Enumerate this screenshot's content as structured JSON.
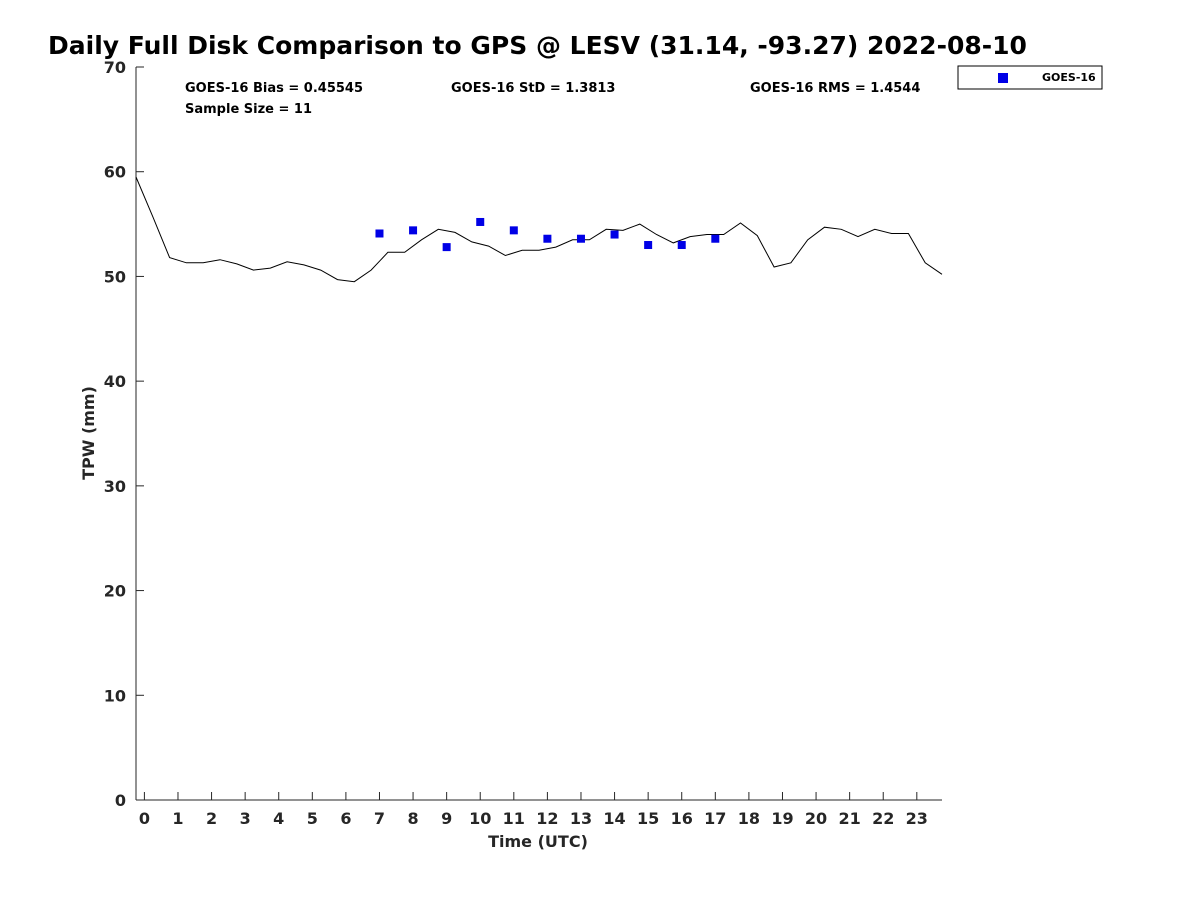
{
  "chart_data": {
    "type": "line",
    "title": "Daily Full Disk Comparison to GPS @ LESV (31.14, -93.27) 2022-08-10",
    "xlabel": "Time (UTC)",
    "ylabel": "TPW (mm)",
    "xlim": [
      -0.25,
      23.75
    ],
    "ylim": [
      0,
      70
    ],
    "xticks": [
      0,
      1,
      2,
      3,
      4,
      5,
      6,
      7,
      8,
      9,
      10,
      11,
      12,
      13,
      14,
      15,
      16,
      17,
      18,
      19,
      20,
      21,
      22,
      23
    ],
    "yticks": [
      0,
      10,
      20,
      30,
      40,
      50,
      60,
      70
    ],
    "grid": false,
    "legend_position": "top-right, outside plot",
    "stats": {
      "bias": "GOES-16 Bias = 0.45545",
      "std": "GOES-16 StD = 1.3813",
      "rms": "GOES-16 RMS = 1.4544",
      "sample": "Sample Size = 11"
    },
    "series": [
      {
        "kind": "line",
        "color": "#000000",
        "x": [
          -0.25,
          0.25,
          0.75,
          1.25,
          1.75,
          2.25,
          2.75,
          3.25,
          3.75,
          4.25,
          4.75,
          5.25,
          5.75,
          6.25,
          6.75,
          7.25,
          7.75,
          8.25,
          8.75,
          9.25,
          9.75,
          10.25,
          10.75,
          11.25,
          11.75,
          12.25,
          12.75,
          13.25,
          13.75,
          14.25,
          14.75,
          15.25,
          15.75,
          16.25,
          16.75,
          17.25,
          17.75,
          18.25,
          18.75,
          19.25,
          19.75,
          20.25,
          20.75,
          21.25,
          21.75,
          22.25,
          22.75,
          23.25,
          23.75
        ],
        "y": [
          59.5,
          55.7,
          51.8,
          51.3,
          51.3,
          51.6,
          51.2,
          50.6,
          50.8,
          51.4,
          51.1,
          50.6,
          49.7,
          49.5,
          50.6,
          52.3,
          52.3,
          53.5,
          54.5,
          54.2,
          53.3,
          52.9,
          52.0,
          52.5,
          52.5,
          52.8,
          53.5,
          53.5,
          54.5,
          54.4,
          55.0,
          54.0,
          53.2,
          53.8,
          54.0,
          54.0,
          55.1,
          53.9,
          50.9,
          51.3,
          53.5,
          54.7,
          54.5,
          53.8,
          54.5,
          54.1,
          54.1,
          51.3,
          50.2
        ]
      },
      {
        "name": "GOES-16",
        "kind": "scatter",
        "color": "#0000e6",
        "x": [
          7.0,
          8.0,
          9.0,
          10.0,
          11.0,
          12.0,
          13.0,
          14.0,
          15.0,
          16.0,
          17.0
        ],
        "y": [
          54.1,
          54.4,
          52.8,
          55.2,
          54.4,
          53.6,
          53.6,
          54.0,
          53.0,
          53.0,
          53.6
        ]
      }
    ]
  }
}
